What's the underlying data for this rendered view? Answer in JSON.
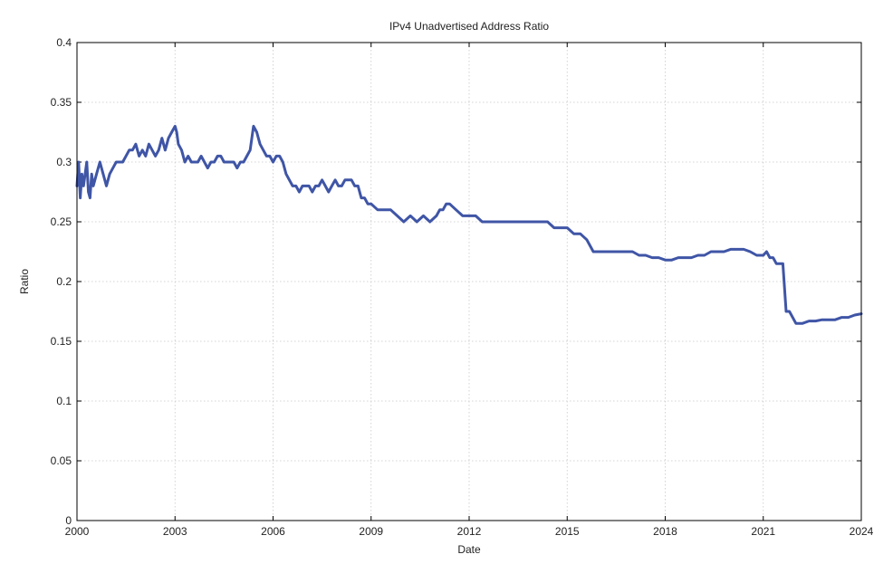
{
  "chart_data": {
    "type": "line",
    "title": "IPv4 Unadvertised Address Ratio",
    "xlabel": "Date",
    "ylabel": "Ratio",
    "xlim": [
      2000.0,
      2024.0
    ],
    "ylim": [
      0,
      0.4
    ],
    "grid": true,
    "legend": "none",
    "x_ticks": [
      {
        "label": "2000",
        "value": 2000.0
      },
      {
        "label": "2003",
        "value": 2003.0
      },
      {
        "label": "2006",
        "value": 2006.0
      },
      {
        "label": "2009",
        "value": 2009.0
      },
      {
        "label": "2012",
        "value": 2012.0
      },
      {
        "label": "2015",
        "value": 2015.0
      },
      {
        "label": "2018",
        "value": 2018.0
      },
      {
        "label": "2021",
        "value": 2021.0
      },
      {
        "label": "2024",
        "value": 2024.0
      }
    ],
    "y_ticks": [
      {
        "label": "0",
        "value": 0
      },
      {
        "label": "0.05",
        "value": 0.05
      },
      {
        "label": "0.1",
        "value": 0.1
      },
      {
        "label": "0.15",
        "value": 0.15
      },
      {
        "label": "0.2",
        "value": 0.2
      },
      {
        "label": "0.25",
        "value": 0.25
      },
      {
        "label": "0.3",
        "value": 0.3
      },
      {
        "label": "0.35",
        "value": 0.35
      },
      {
        "label": "0.4",
        "value": 0.4
      }
    ],
    "series": [
      {
        "name": "",
        "color": "#3f55a6",
        "x": [
          2000.0,
          2000.05,
          2000.1,
          2000.15,
          2000.2,
          2000.25,
          2000.3,
          2000.35,
          2000.4,
          2000.45,
          2000.5,
          2000.6,
          2000.7,
          2000.8,
          2000.9,
          2001.0,
          2001.2,
          2001.4,
          2001.6,
          2001.7,
          2001.8,
          2001.9,
          2002.0,
          2002.1,
          2002.2,
          2002.3,
          2002.4,
          2002.5,
          2002.6,
          2002.7,
          2002.8,
          2002.9,
          2003.0,
          2003.05,
          2003.1,
          2003.2,
          2003.3,
          2003.4,
          2003.5,
          2003.6,
          2003.7,
          2003.8,
          2003.9,
          2004.0,
          2004.1,
          2004.2,
          2004.3,
          2004.4,
          2004.5,
          2004.6,
          2004.7,
          2004.8,
          2004.9,
          2005.0,
          2005.1,
          2005.2,
          2005.3,
          2005.4,
          2005.5,
          2005.6,
          2005.7,
          2005.8,
          2005.9,
          2006.0,
          2006.1,
          2006.2,
          2006.3,
          2006.4,
          2006.5,
          2006.6,
          2006.7,
          2006.8,
          2006.9,
          2007.0,
          2007.1,
          2007.2,
          2007.3,
          2007.4,
          2007.5,
          2007.6,
          2007.7,
          2007.8,
          2007.9,
          2008.0,
          2008.1,
          2008.2,
          2008.3,
          2008.4,
          2008.5,
          2008.6,
          2008.7,
          2008.8,
          2008.9,
          2009.0,
          2009.2,
          2009.4,
          2009.6,
          2009.8,
          2010.0,
          2010.2,
          2010.4,
          2010.6,
          2010.8,
          2011.0,
          2011.1,
          2011.2,
          2011.3,
          2011.4,
          2011.6,
          2011.8,
          2012.0,
          2012.2,
          2012.4,
          2012.6,
          2012.8,
          2013.0,
          2013.2,
          2013.4,
          2013.6,
          2013.8,
          2014.0,
          2014.2,
          2014.4,
          2014.6,
          2014.8,
          2015.0,
          2015.2,
          2015.4,
          2015.6,
          2015.8,
          2016.0,
          2016.2,
          2016.4,
          2016.6,
          2016.8,
          2017.0,
          2017.2,
          2017.4,
          2017.6,
          2017.8,
          2018.0,
          2018.2,
          2018.4,
          2018.6,
          2018.8,
          2019.0,
          2019.2,
          2019.4,
          2019.6,
          2019.8,
          2020.0,
          2020.2,
          2020.4,
          2020.6,
          2020.8,
          2021.0,
          2021.1,
          2021.2,
          2021.3,
          2021.4,
          2021.5,
          2021.6,
          2021.7,
          2021.8,
          2022.0,
          2022.2,
          2022.4,
          2022.6,
          2022.8,
          2023.0,
          2023.2,
          2023.4,
          2023.6,
          2023.8,
          2024.0
        ],
        "y": [
          0.28,
          0.3,
          0.27,
          0.29,
          0.28,
          0.29,
          0.3,
          0.275,
          0.27,
          0.29,
          0.28,
          0.29,
          0.3,
          0.29,
          0.28,
          0.29,
          0.3,
          0.3,
          0.31,
          0.31,
          0.315,
          0.305,
          0.31,
          0.305,
          0.315,
          0.31,
          0.305,
          0.31,
          0.32,
          0.31,
          0.32,
          0.325,
          0.33,
          0.325,
          0.315,
          0.31,
          0.3,
          0.305,
          0.3,
          0.3,
          0.3,
          0.305,
          0.3,
          0.295,
          0.3,
          0.3,
          0.305,
          0.305,
          0.3,
          0.3,
          0.3,
          0.3,
          0.295,
          0.3,
          0.3,
          0.305,
          0.31,
          0.33,
          0.325,
          0.315,
          0.31,
          0.305,
          0.305,
          0.3,
          0.305,
          0.305,
          0.3,
          0.29,
          0.285,
          0.28,
          0.28,
          0.275,
          0.28,
          0.28,
          0.28,
          0.275,
          0.28,
          0.28,
          0.285,
          0.28,
          0.275,
          0.28,
          0.285,
          0.28,
          0.28,
          0.285,
          0.285,
          0.285,
          0.28,
          0.28,
          0.27,
          0.27,
          0.265,
          0.265,
          0.26,
          0.26,
          0.26,
          0.255,
          0.25,
          0.255,
          0.25,
          0.255,
          0.25,
          0.255,
          0.26,
          0.26,
          0.265,
          0.265,
          0.26,
          0.255,
          0.255,
          0.255,
          0.25,
          0.25,
          0.25,
          0.25,
          0.25,
          0.25,
          0.25,
          0.25,
          0.25,
          0.25,
          0.25,
          0.245,
          0.245,
          0.245,
          0.24,
          0.24,
          0.235,
          0.225,
          0.225,
          0.225,
          0.225,
          0.225,
          0.225,
          0.225,
          0.222,
          0.222,
          0.22,
          0.22,
          0.218,
          0.218,
          0.22,
          0.22,
          0.22,
          0.222,
          0.222,
          0.225,
          0.225,
          0.225,
          0.227,
          0.227,
          0.227,
          0.225,
          0.222,
          0.222,
          0.225,
          0.22,
          0.22,
          0.215,
          0.215,
          0.215,
          0.175,
          0.175,
          0.165,
          0.165,
          0.167,
          0.167,
          0.168,
          0.168,
          0.168,
          0.17,
          0.17,
          0.172,
          0.173
        ]
      }
    ]
  }
}
